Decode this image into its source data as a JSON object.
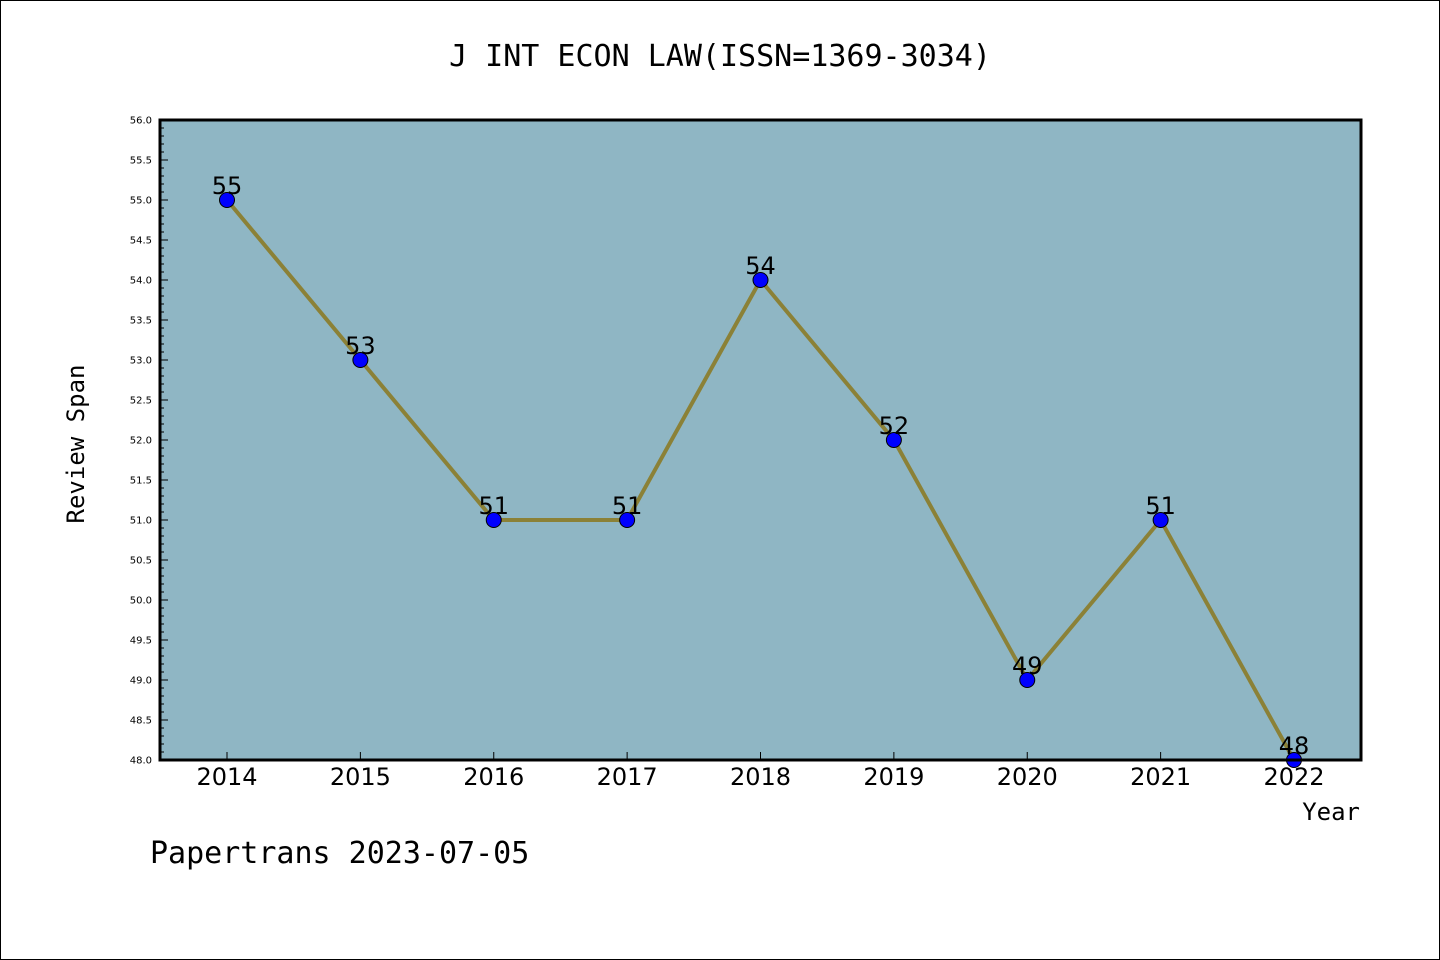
{
  "chart_data": {
    "type": "line",
    "title": "J INT ECON LAW(ISSN=1369-3034)",
    "xlabel": "Year",
    "ylabel": "Review Span",
    "footer": "Papertrans 2023-07-05",
    "categories": [
      "2014",
      "2015",
      "2016",
      "2017",
      "2018",
      "2019",
      "2020",
      "2021",
      "2022"
    ],
    "series": [
      {
        "values": [
          55,
          53,
          51,
          51,
          54,
          52,
          49,
          51,
          48
        ],
        "data_labels": [
          "55",
          "53",
          "51",
          "51",
          "54",
          "52",
          "49",
          "51",
          "48"
        ]
      }
    ],
    "ylim": [
      48.0,
      56.0
    ],
    "yticks": [
      "48.0",
      "48.5",
      "49.0",
      "49.5",
      "50.0",
      "50.5",
      "51.0",
      "51.5",
      "52.0",
      "52.5",
      "53.0",
      "53.5",
      "54.0",
      "54.5",
      "55.0",
      "55.5",
      "56.0"
    ],
    "grid": false,
    "legend": "none",
    "colors": {
      "plot_background": "#8fb6c4",
      "line": "#8b8137",
      "marker": "#0000ff"
    }
  }
}
